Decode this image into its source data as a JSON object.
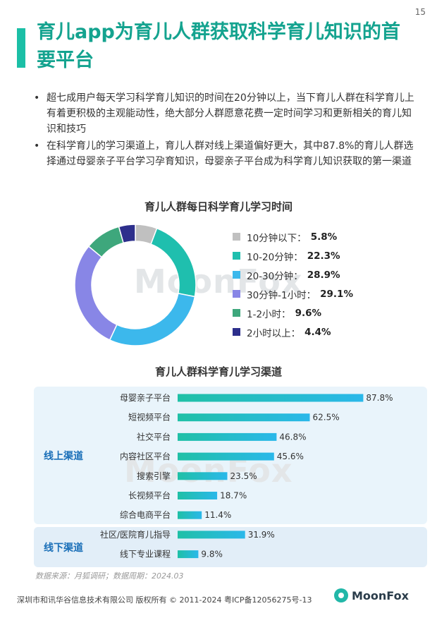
{
  "page_number": "15",
  "title": "育儿app为育儿人群获取科学育儿知识的首要平台",
  "bullets": [
    "超七成用户每天学习科学育儿知识的时间在20分钟以上，当下育儿人群在科学育儿上有着更积极的主观能动性，绝大部分人群愿意花费一定时间学习和更新相关的育儿知识和技巧",
    "在科学育儿的学习渠道上，育儿人群对线上渠道偏好更大，其中87.8%的育儿人群选择通过母婴亲子平台学习孕育知识，母婴亲子平台成为科学育儿知识获取的第一渠道"
  ],
  "watermark": "MoonFox",
  "chart_data": [
    {
      "type": "pie",
      "title": "育儿人群每日科学育儿学习时间",
      "donut": true,
      "legend_position": "right",
      "slices": [
        {
          "label": "10分钟以下：",
          "value": 5.8,
          "value_label": "5.8%",
          "color": "#c0c0c0"
        },
        {
          "label": "10-20分钟：",
          "value": 22.3,
          "value_label": "22.3%",
          "color": "#1fbfae"
        },
        {
          "label": "20-30分钟：",
          "value": 28.9,
          "value_label": "28.9%",
          "color": "#3cb8ec"
        },
        {
          "label": "30分钟-1小时：",
          "value": 29.1,
          "value_label": "29.1%",
          "color": "#8886e6"
        },
        {
          "label": "1-2小时：",
          "value": 9.6,
          "value_label": "9.6%",
          "color": "#3ea77c"
        },
        {
          "label": "2小时以上：",
          "value": 4.4,
          "value_label": "4.4%",
          "color": "#2d2f8c"
        }
      ]
    },
    {
      "type": "bar",
      "orientation": "horizontal",
      "title": "育儿人群科学育儿学习渠道",
      "groups": [
        {
          "label": "线上渠道",
          "categories": [
            "母婴亲子平台",
            "短视频平台",
            "社交平台",
            "内容社区平台",
            "搜索引擎",
            "长视频平台",
            "综合电商平台"
          ],
          "values": [
            87.8,
            62.5,
            46.8,
            45.6,
            23.5,
            18.7,
            11.4
          ],
          "value_labels": [
            "87.8%",
            "62.5%",
            "46.8%",
            "45.6%",
            "23.5%",
            "18.7%",
            "11.4%"
          ]
        },
        {
          "label": "线下渠道",
          "categories": [
            "社区/医院育儿指导",
            "线下专业课程"
          ],
          "values": [
            31.9,
            9.8
          ],
          "value_labels": [
            "31.9%",
            "9.8%"
          ]
        }
      ],
      "bar_colors": [
        "#2ab8ea",
        "#1fc0a6"
      ]
    }
  ],
  "source": "数据来源：月狐调研；数据周期：2024.03",
  "footer": "深圳市和讯华谷信息技术有限公司 版权所有 © 2011-2024 粤ICP备12056275号-13",
  "logo_text": "MoonFox"
}
